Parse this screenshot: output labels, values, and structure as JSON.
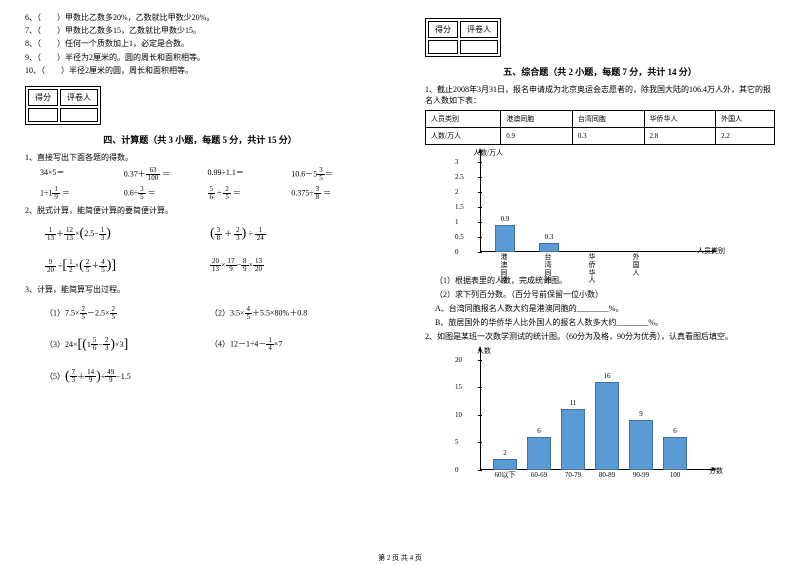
{
  "leftCol": {
    "questions": [
      "6、（　　）甲数比乙数多20%，乙数就比甲数少20%。",
      "7、（　　）甲数比乙数多15，乙数就比甲数少15。",
      "8、（　　）任何一个质数加上1，必定是合数。",
      "9、（　　）半径为2厘米的。圆的周长和面积相等。",
      "10、（　　）半径2厘米的圆，周长和面积相等。"
    ],
    "scoreHeaders": [
      "得分",
      "评卷人"
    ],
    "section4Title": "四、计算题（共 3 小题，每题 5 分，共计 15 分）",
    "q1": "1、直接写出下面各题的得数。",
    "q1expr": [
      [
        "34×5＝",
        "0.37＋",
        "63",
        "100",
        "＝",
        "0.99÷1.1＝",
        "10.6－5",
        "3",
        "5",
        "＝"
      ],
      [
        "1÷1",
        "1",
        "9",
        "＝",
        "0.6÷",
        "3",
        "5",
        "＝",
        "5",
        "6",
        "÷",
        "2",
        "5",
        "＝",
        "0.375÷",
        "3",
        "8",
        "＝"
      ]
    ],
    "q2": "2、脱式计算，能简便计算的要简便计算。",
    "q3": "3、计算，能简算写出过程。",
    "q3items": {
      "i1": "（1）7.5×",
      "i2": "（2）",
      "i3": "（3）",
      "i4": "（4）12－1÷4－",
      "i5": "（5）"
    }
  },
  "rightCol": {
    "scoreHeaders": [
      "得分",
      "评卷人"
    ],
    "section5Title": "五、综合题（共 2 小题，每题 7 分，共计 14 分）",
    "q1": "1、截止2008年3月31日，报名申请成为北京奥运会志愿者的，除我国大陆的106.4万人外，其它的报名人数如下表：",
    "tableHeaders": [
      "人员类别",
      "港澳同胞",
      "台湾同胞",
      "华侨华人",
      "外国人"
    ],
    "tableRow": [
      "人数/万人",
      "0.9",
      "0.3",
      "2.8",
      "2.2"
    ],
    "chart1": {
      "yTitle": "人数/万人",
      "xTitle": "人员类别",
      "yMax": 3,
      "yTicks": [
        0,
        0.5,
        1,
        1.5,
        2,
        2.5,
        3
      ],
      "categories": [
        "港澳同胞",
        "台湾同胞",
        "华侨华人",
        "外国人"
      ],
      "values": [
        0.9,
        0.3,
        null,
        null
      ],
      "barColor": "#5b9bd5",
      "gridColor": "#000"
    },
    "subQ": [
      "（1）根据表里的人数，完成统计图。",
      "（2）求下列百分数。（百分号前保留一位小数）",
      "A、台湾同胞报名人数大约是港澳同胞的________%。",
      "B、旅居国外的华侨华人比外国人的报名人数多大约________%。"
    ],
    "q2": "2、如图是某班一次数学测试的统计图。（60分为及格，90分为优秀），认真看图后填空。",
    "chart2": {
      "yTitle": "人数",
      "xTitle": "分数",
      "yMax": 20,
      "yTicks": [
        0,
        5,
        10,
        15,
        20
      ],
      "categories": [
        "60以下",
        "60-69",
        "70-79",
        "80-89",
        "90-99",
        "100"
      ],
      "values": [
        2,
        6,
        11,
        16,
        9,
        6
      ],
      "barColor": "#5b9bd5"
    }
  },
  "footer": "第 2 页 共 4 页"
}
